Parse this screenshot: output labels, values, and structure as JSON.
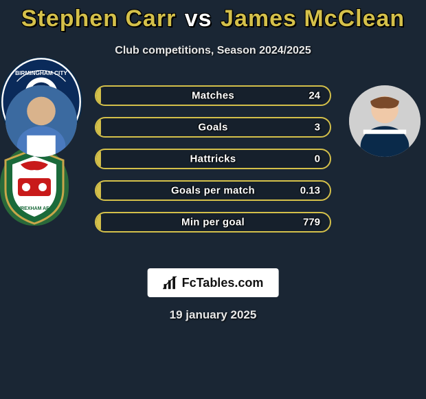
{
  "title": {
    "player_a": "Stephen Carr",
    "vs": "vs",
    "player_b": "James McClean",
    "color_highlight": "#d4c04a",
    "color_vs": "#ffffff"
  },
  "subtitle": "Club competitions, Season 2024/2025",
  "bars": [
    {
      "label": "Matches",
      "value": "24",
      "fill_pct": 2
    },
    {
      "label": "Goals",
      "value": "3",
      "fill_pct": 2
    },
    {
      "label": "Hattricks",
      "value": "0",
      "fill_pct": 2
    },
    {
      "label": "Goals per match",
      "value": "0.13",
      "fill_pct": 2
    },
    {
      "label": "Min per goal",
      "value": "779",
      "fill_pct": 2
    }
  ],
  "bar_style": {
    "border_color": "#d4c04a",
    "fill_color": "#d4c04a",
    "text_color": "#ffffff"
  },
  "logo_text": "FcTables.com",
  "date": "19 january 2025",
  "background_color": "#1a2634",
  "avatars": {
    "player_a_alt": "stephen-carr-headshot",
    "player_b_alt": "james-mcclean-headshot",
    "club_a_alt": "birmingham-city-crest",
    "club_b_alt": "wrexham-afc-crest"
  }
}
